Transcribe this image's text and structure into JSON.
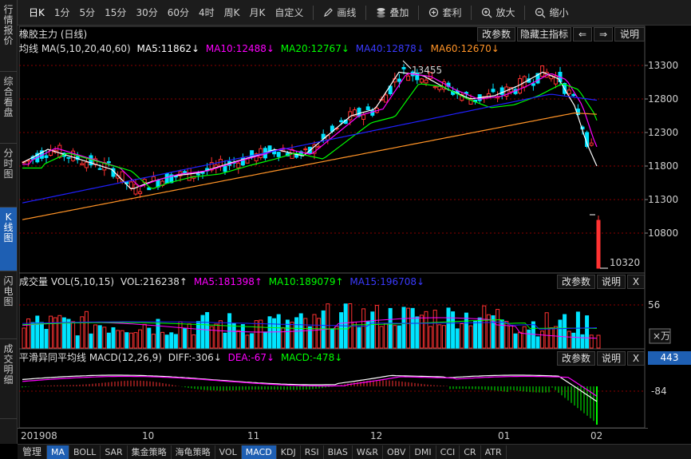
{
  "sidebar": {
    "tabs": [
      {
        "label": "行\n情\n报\n价",
        "active": false
      },
      {
        "label": "综\n合\n看\n盘",
        "active": false
      },
      {
        "label": "分\n时\n图",
        "active": false
      },
      {
        "label": "K\n线\n图",
        "active": true
      },
      {
        "label": "闪\n电\n图",
        "active": false
      },
      {
        "label": "成\n交\n明\n细",
        "active": false
      }
    ]
  },
  "toolbar": {
    "periods": [
      "日K",
      "1分",
      "5分",
      "15分",
      "30分",
      "60分",
      "4时",
      "周K",
      "月K",
      "自定义"
    ],
    "active_period": "日K",
    "tools": [
      {
        "label": "画线",
        "icon": "pencil-icon"
      },
      {
        "label": "叠加",
        "icon": "stack-icon"
      },
      {
        "label": "套利",
        "icon": "arbitrage-icon"
      },
      {
        "label": "放大",
        "icon": "zoom-in-icon"
      },
      {
        "label": "缩小",
        "icon": "zoom-out-icon"
      }
    ]
  },
  "main_panel": {
    "title": "橡胶主力 (日线)",
    "buttons": {
      "edit_params": "改参数",
      "hide_indicator": "隐藏主指标",
      "prev": "⇐",
      "next": "⇒",
      "help": "说明"
    },
    "ma_line": {
      "name": "均线 MA(5,10,20,40,60)",
      "ma5": "MA5:11862↓",
      "ma10": "MA10:12488↓",
      "ma20": "MA20:12767↓",
      "ma40": "MA40:12878↓",
      "ma60": "MA60:12670↓"
    },
    "price_labels": [
      "13300",
      "12800",
      "12300",
      "11800",
      "11300",
      "10800"
    ],
    "high_annotation": "13455",
    "low_annotation": "10320"
  },
  "volume_panel": {
    "name": "成交量 VOL(5,10,15)",
    "vol": "VOL:216238↑",
    "ma5": "MA5:181398↑",
    "ma10": "MA10:189079↑",
    "ma15": "MA15:196708↓",
    "buttons": {
      "edit_params": "改参数",
      "help": "说明",
      "close": "X"
    },
    "axis_label": "56",
    "unit_label": "×万"
  },
  "macd_panel": {
    "name": "平滑异同平均线 MACD(12,26,9)",
    "diff": "DIFF:-306↓",
    "dea": "DEA:-67↓",
    "macd": "MACD:-478↓",
    "buttons": {
      "edit_params": "改参数",
      "help": "说明",
      "close": "X"
    },
    "axis_label": "-84",
    "right_value": "443"
  },
  "x_axis": {
    "labels": [
      "201908",
      "10",
      "11",
      "12",
      "01",
      "02"
    ]
  },
  "bottom_tabs": {
    "items": [
      "管理",
      "MA",
      "BOLL",
      "SAR",
      "集金策略",
      "海龟策略",
      "VOL",
      "MACD",
      "KDJ",
      "RSI",
      "BIAS",
      "W&R",
      "OBV",
      "DMI",
      "CCI",
      "CR",
      "ATR"
    ],
    "active": [
      "MA",
      "MACD"
    ]
  },
  "colors": {
    "up": "#ff3232",
    "down": "#00e4ff",
    "ma5": "#ffffff",
    "ma10": "#ff00ff",
    "ma20": "#00ff00",
    "ma40": "#2020ff",
    "ma60": "#ff9326",
    "accent": "#1e5fb3"
  }
}
